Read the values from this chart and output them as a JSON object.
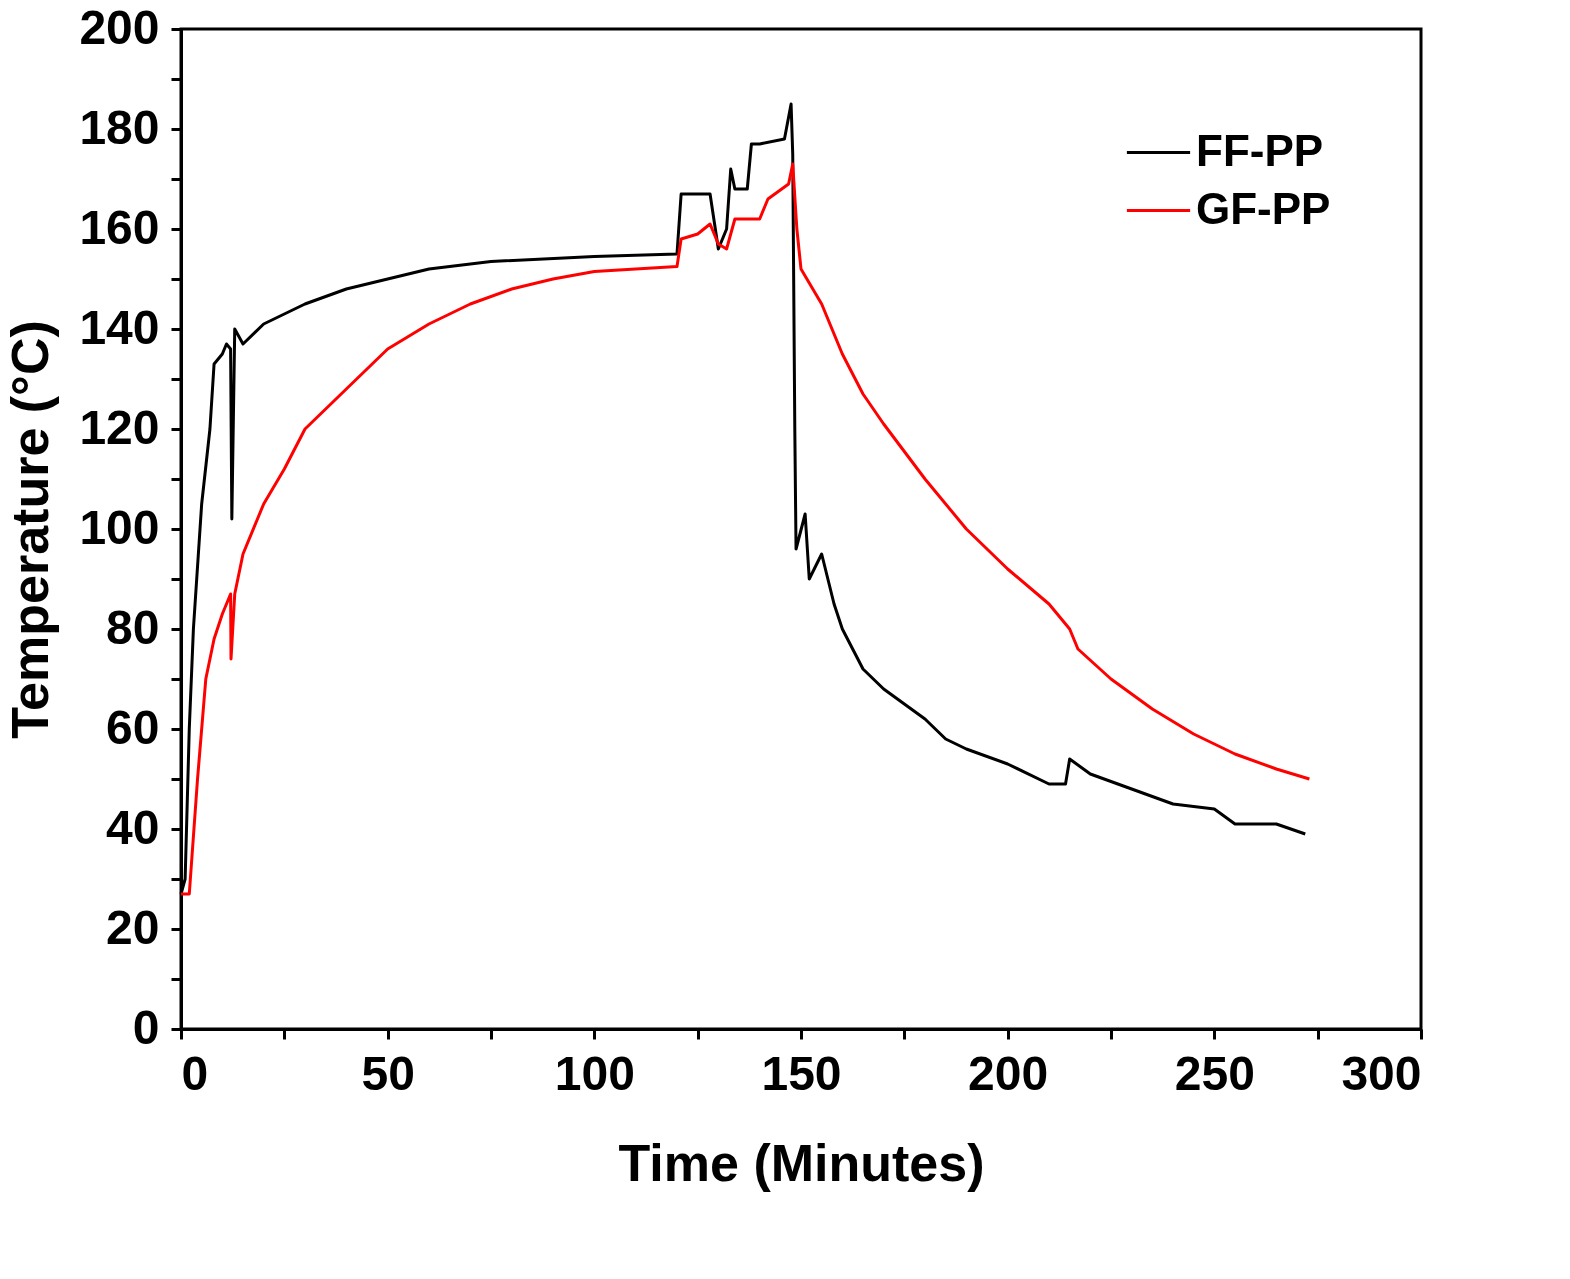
{
  "chart_data": {
    "type": "line",
    "xlabel": "Time (Minutes)",
    "ylabel": "Temperature (°C)",
    "xlim": [
      0,
      300
    ],
    "ylim": [
      0,
      200
    ],
    "xticks": [
      0,
      {
        "value": 25,
        "label": null
      },
      50,
      {
        "value": 75,
        "label": null
      },
      100,
      {
        "value": 125,
        "label": null
      },
      150,
      {
        "value": 175,
        "label": null
      },
      200,
      {
        "value": 225,
        "label": null
      },
      250,
      {
        "value": 275,
        "label": null
      },
      300
    ],
    "yticks": [
      0,
      {
        "value": 10,
        "label": null
      },
      20,
      {
        "value": 30,
        "label": null
      },
      40,
      {
        "value": 50,
        "label": null
      },
      60,
      {
        "value": 70,
        "label": null
      },
      80,
      {
        "value": 90,
        "label": null
      },
      100,
      {
        "value": 110,
        "label": null
      },
      120,
      {
        "value": 130,
        "label": null
      },
      140,
      {
        "value": 150,
        "label": null
      },
      160,
      {
        "value": 170,
        "label": null
      },
      180,
      {
        "value": 190,
        "label": null
      },
      200
    ],
    "grid": false,
    "legend": "top right",
    "marker": "none",
    "line_style": "solid",
    "series": [
      {
        "name": "FF-PP",
        "color": "#000000",
        "x": [
          0,
          1,
          2,
          3,
          5,
          7,
          8,
          10,
          11,
          12,
          12.3,
          13,
          15,
          20,
          30,
          40,
          50,
          60,
          75,
          100,
          120,
          121,
          128,
          130,
          132,
          133,
          134,
          137,
          138,
          140,
          146,
          147.6,
          148,
          148.5,
          148.8,
          151,
          152,
          155,
          158,
          160,
          165,
          170,
          175,
          180,
          185,
          190,
          200,
          210,
          214,
          215,
          220,
          230,
          240,
          250,
          255,
          260,
          265,
          272
        ],
        "values": [
          27,
          30,
          60,
          80,
          105,
          120,
          133,
          135,
          137,
          136,
          102,
          140,
          137,
          141,
          145,
          148,
          150,
          152,
          153.5,
          154.5,
          155,
          167,
          167,
          156,
          160,
          172,
          168,
          168,
          177,
          177,
          178,
          185,
          175,
          120,
          96,
          103,
          90,
          95,
          85,
          80,
          72,
          68,
          65,
          62,
          58,
          56,
          53,
          49,
          49,
          54,
          51,
          48,
          45,
          44,
          41,
          41,
          41,
          39
        ]
      },
      {
        "name": "GF-PP",
        "color": "#ff0000",
        "x": [
          0,
          2,
          4,
          6,
          8,
          10,
          12,
          12.1,
          13,
          15,
          20,
          25,
          30,
          40,
          50,
          60,
          70,
          80,
          90,
          100,
          110,
          120,
          121,
          125,
          128,
          130,
          132,
          134,
          140,
          142,
          147,
          148,
          149,
          150,
          155,
          160,
          165,
          170,
          180,
          190,
          200,
          210,
          215,
          217,
          225,
          235,
          245,
          255,
          265,
          273
        ],
        "values": [
          27,
          27,
          50,
          70,
          78,
          83,
          87,
          74,
          87,
          95,
          105,
          112,
          120,
          128,
          136,
          141,
          145,
          148,
          150,
          151.5,
          152,
          152.5,
          158,
          159,
          161,
          157,
          156,
          162,
          162,
          166,
          169,
          173,
          160,
          152,
          145,
          135,
          127,
          121,
          110,
          100,
          92,
          85,
          80,
          76,
          70,
          64,
          59,
          55,
          52,
          50
        ]
      }
    ]
  }
}
